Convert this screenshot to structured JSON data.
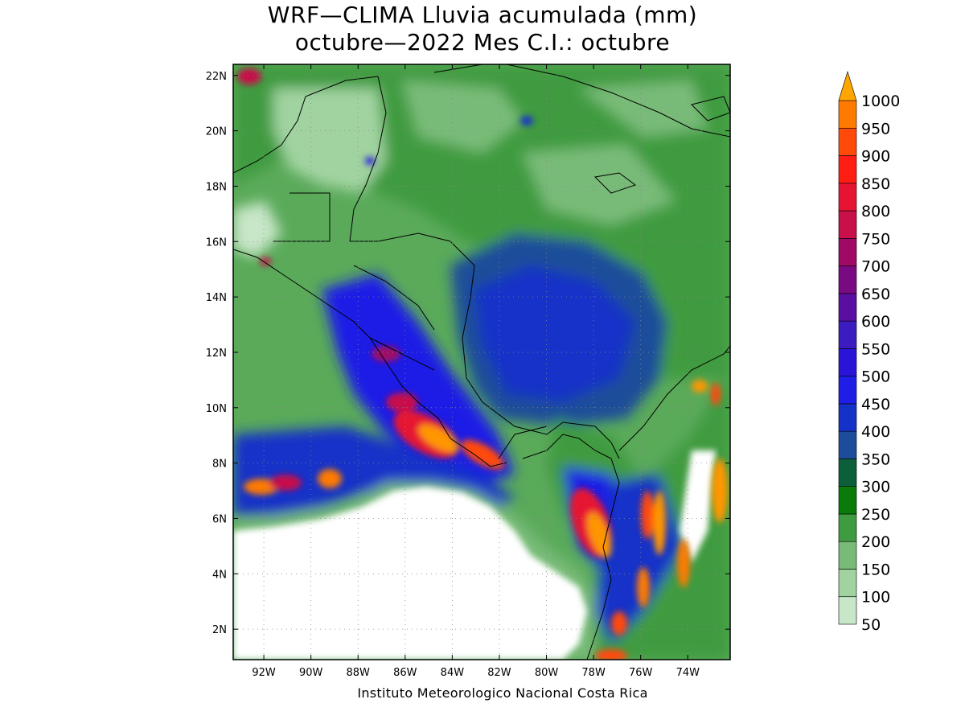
{
  "title_line1": "WRF—CLIMA Lluvia acumulada (mm)",
  "title_line2": "octubre—2022 Mes C.I.: octubre",
  "credit": "Instituto Meteorologico Nacional Costa Rica",
  "lon_ticks": [
    "92W",
    "90W",
    "88W",
    "86W",
    "84W",
    "82W",
    "80W",
    "78W",
    "76W",
    "74W"
  ],
  "lat_ticks": [
    "22N",
    "20N",
    "18N",
    "16N",
    "14N",
    "12N",
    "10N",
    "8N",
    "6N",
    "4N",
    "2N"
  ],
  "colorbar": {
    "levels": [
      "50",
      "100",
      "150",
      "200",
      "250",
      "300",
      "350",
      "400",
      "450",
      "500",
      "550",
      "600",
      "650",
      "700",
      "750",
      "800",
      "850",
      "900",
      "950",
      "1000"
    ],
    "colors": [
      "#c8e6c8",
      "#a0d3a0",
      "#78bb78",
      "#3f9b3f",
      "#0a7a0a",
      "#0b5f3a",
      "#1c4d9a",
      "#1432c8",
      "#1e1ee6",
      "#2a14d8",
      "#3c1cc0",
      "#5a0fa0",
      "#7a0a82",
      "#a00a66",
      "#c8104a",
      "#e61432",
      "#ff1e14",
      "#ff4a0a",
      "#ff7a00",
      "#ff9600"
    ],
    "over_color": "#ffa500"
  },
  "map": {
    "lon_range": [
      -93.3,
      -72.2
    ],
    "lat_range": [
      0.9,
      22.4
    ],
    "background_colors": {
      "ocean_dry": "#ffffff",
      "land_low": "#78bb78",
      "land_mid": "#3f9b3f",
      "heavy": "#1e1ee6",
      "extreme": "#ff1e14",
      "max": "#ff9600"
    }
  }
}
